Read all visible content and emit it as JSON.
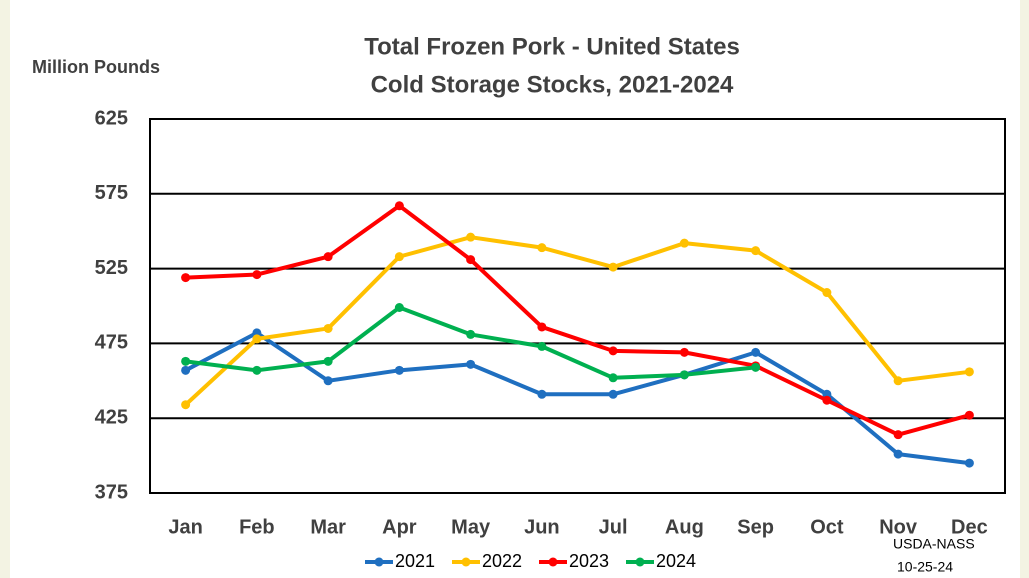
{
  "chart_data": {
    "type": "line",
    "title": "Total Frozen Pork - United States",
    "subtitle": "Cold Storage Stocks, 2021-2024",
    "y_label": "Million Pounds",
    "annotations": [
      "USDA-NASS",
      "10-25-24"
    ],
    "categories": [
      "Jan",
      "Feb",
      "Mar",
      "Apr",
      "May",
      "Jun",
      "Jul",
      "Aug",
      "Sep",
      "Oct",
      "Nov",
      "Dec"
    ],
    "series": [
      {
        "name": "2021",
        "color": "#1f6fc0",
        "values": [
          457,
          482,
          450,
          457,
          461,
          441,
          441,
          454,
          469,
          441,
          401,
          395
        ]
      },
      {
        "name": "2022",
        "color": "#ffc000",
        "values": [
          434,
          478,
          485,
          533,
          546,
          539,
          526,
          542,
          537,
          509,
          450,
          456
        ]
      },
      {
        "name": "2023",
        "color": "#ff0000",
        "values": [
          519,
          521,
          533,
          567,
          531,
          486,
          470,
          469,
          460,
          437,
          414,
          427
        ]
      },
      {
        "name": "2024",
        "color": "#00b050",
        "values": [
          463,
          457,
          463,
          499,
          481,
          473,
          452,
          454,
          459,
          null,
          null,
          null
        ]
      }
    ],
    "ylim": [
      375,
      625
    ],
    "yticks": [
      375,
      425,
      475,
      525,
      575,
      625
    ],
    "grid": true,
    "legend": "bottom"
  }
}
